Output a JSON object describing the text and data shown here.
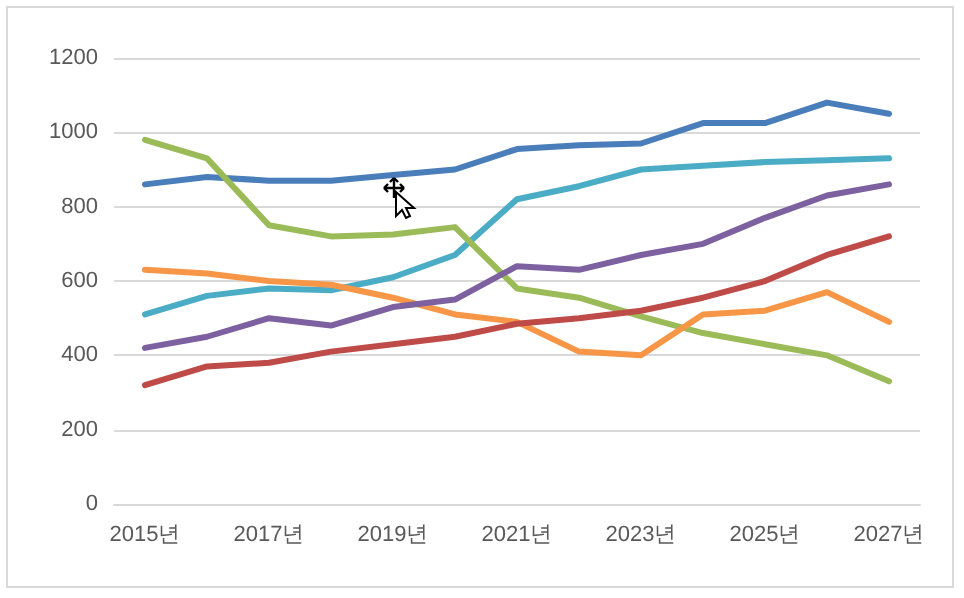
{
  "chart_data": {
    "type": "line",
    "categories": [
      "2015년",
      null,
      "2017년",
      null,
      "2019년",
      null,
      "2021년",
      null,
      "2023년",
      null,
      "2025년",
      null,
      "2027년"
    ],
    "series": [
      {
        "color": "#4a7ebb",
        "values": [
          860,
          880,
          870,
          870,
          885,
          900,
          955,
          965,
          970,
          1025,
          1025,
          1080,
          1050
        ]
      },
      {
        "color": "#4bacc6",
        "values": [
          510,
          560,
          580,
          575,
          610,
          670,
          820,
          855,
          900,
          910,
          920,
          925,
          930
        ]
      },
      {
        "color": "#9bbb59",
        "values": [
          980,
          930,
          750,
          720,
          725,
          745,
          580,
          555,
          505,
          460,
          430,
          400,
          330
        ]
      },
      {
        "color": "#f79646",
        "values": [
          630,
          620,
          600,
          590,
          555,
          510,
          490,
          410,
          400,
          510,
          520,
          570,
          490
        ]
      },
      {
        "color": "#be4b48",
        "values": [
          320,
          370,
          380,
          410,
          430,
          450,
          485,
          500,
          520,
          555,
          600,
          670,
          720
        ]
      },
      {
        "color": "#7d60a0",
        "values": [
          420,
          450,
          500,
          480,
          530,
          550,
          640,
          630,
          670,
          700,
          770,
          830,
          860
        ]
      }
    ],
    "ylim": [
      0,
      1200
    ],
    "yticks": [
      0,
      200,
      400,
      600,
      800,
      1000,
      1200
    ],
    "grid": "y",
    "marker": "none",
    "line_style": "solid"
  }
}
